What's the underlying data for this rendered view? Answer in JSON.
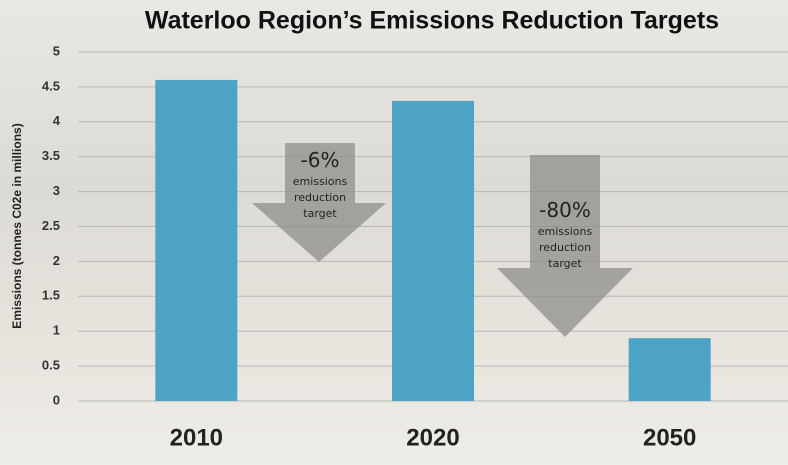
{
  "chart_data": {
    "type": "bar",
    "title": "Waterloo Region’s Emissions Reduction Targets",
    "y_label": "Emissions (tonnes C02e in millions)",
    "categories": [
      "2010",
      "2020",
      "2050"
    ],
    "values": [
      4.6,
      4.3,
      0.9
    ],
    "color": "#4da3c3",
    "ylim": [
      0,
      5
    ],
    "yticks": [
      0,
      0.5,
      1,
      1.5,
      2,
      2.5,
      3,
      3.5,
      4,
      4.5,
      5
    ],
    "grid": true,
    "annotations": [
      {
        "value": "-6%",
        "text": "emissions reduction target"
      },
      {
        "value": "-80%",
        "text": "emissions reduction target"
      }
    ]
  }
}
